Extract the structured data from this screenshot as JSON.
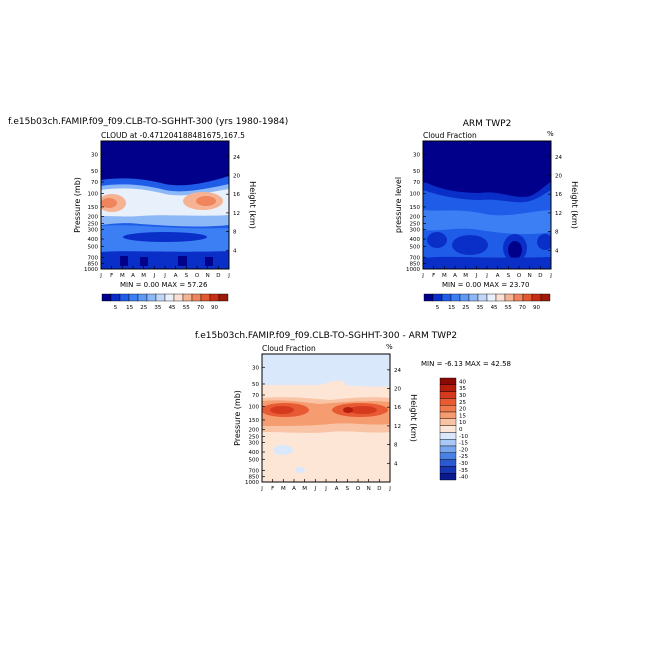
{
  "chart_data": [
    {
      "type": "heatmap",
      "title": "f.e15b03ch.FAMIP.f09_f09.CLB-TO-SGHHT-300 (yrs 1980-1984)",
      "subtitle": "CLOUD at -0.471204188481675,167.5",
      "ylabel": "Pressure (mb)",
      "ylabel_right": "Height (km)",
      "y_ticks": [
        "30",
        "50",
        "70",
        "100",
        "150",
        "200",
        "250",
        "300",
        "400",
        "500",
        "700",
        "850",
        "1000"
      ],
      "y_ticks_right": [
        "24",
        "20",
        "16",
        "12",
        "8",
        "4"
      ],
      "x_ticks": [
        "J",
        "F",
        "M",
        "A",
        "M",
        "J",
        "J",
        "A",
        "S",
        "O",
        "N",
        "D",
        "J"
      ],
      "stats": "MIN =    0.00 MAX =   57.26",
      "colorbar_labels": [
        "5",
        "15",
        "25",
        "35",
        "45",
        "55",
        "70",
        "90"
      ],
      "colorbar_orientation": "horizontal",
      "colormap": [
        "#00008b",
        "#0a2fc8",
        "#1f5de8",
        "#3c7ff4",
        "#5d99f5",
        "#8cb8f7",
        "#c2d7f8",
        "#e8f0fb",
        "#fbe0d3",
        "#f6b394",
        "#ef845d",
        "#e35a30",
        "#c92d12",
        "#9e1a08"
      ]
    },
    {
      "type": "heatmap",
      "title": "ARM TWP2",
      "subtitle": "Cloud Fraction",
      "corner_label": "%",
      "ylabel": "pressure level",
      "ylabel_right": "Height (km)",
      "y_ticks": [
        "30",
        "50",
        "70",
        "100",
        "150",
        "200",
        "250",
        "300",
        "400",
        "500",
        "700",
        "850",
        "1000"
      ],
      "y_ticks_right": [
        "24",
        "20",
        "16",
        "12",
        "8",
        "4"
      ],
      "x_ticks": [
        "J",
        "F",
        "M",
        "A",
        "M",
        "J",
        "J",
        "A",
        "S",
        "O",
        "N",
        "D",
        "J"
      ],
      "stats": "MIN =    0.00 MAX =   23.70",
      "colorbar_labels": [
        "5",
        "15",
        "25",
        "35",
        "45",
        "55",
        "70",
        "90"
      ],
      "colorbar_orientation": "horizontal"
    },
    {
      "type": "heatmap",
      "title": "f.e15b03ch.FAMIP.f09_f09.CLB-TO-SGHHT-300 - ARM TWP2",
      "subtitle": "Cloud Fraction",
      "corner_label": "%",
      "ylabel": "Pressure (mb)",
      "ylabel_right": "Height (km)",
      "y_ticks": [
        "30",
        "50",
        "70",
        "100",
        "150",
        "200",
        "250",
        "300",
        "400",
        "500",
        "700",
        "850",
        "1000"
      ],
      "y_ticks_right": [
        "24",
        "20",
        "16",
        "12",
        "8",
        "4"
      ],
      "x_ticks": [
        "J",
        "F",
        "M",
        "A",
        "M",
        "J",
        "J",
        "A",
        "S",
        "O",
        "N",
        "D",
        "J"
      ],
      "stats": "MIN =   -6.13 MAX =   42.58",
      "colorbar_labels": [
        "40",
        "35",
        "30",
        "25",
        "20",
        "15",
        "10",
        "0",
        "-10",
        "-15",
        "-20",
        "-25",
        "-30",
        "-35",
        "-40"
      ],
      "colorbar_orientation": "vertical",
      "colormap": [
        "#8b0a05",
        "#b51d0d",
        "#d53a1f",
        "#e85a33",
        "#f07a4a",
        "#f59d70",
        "#f9c4a6",
        "#fde6d6",
        "#d9e8fb",
        "#a9c9f5",
        "#77a6ee",
        "#4a7fe4",
        "#2a59d2",
        "#1635b2",
        "#0a1a8e"
      ]
    }
  ]
}
